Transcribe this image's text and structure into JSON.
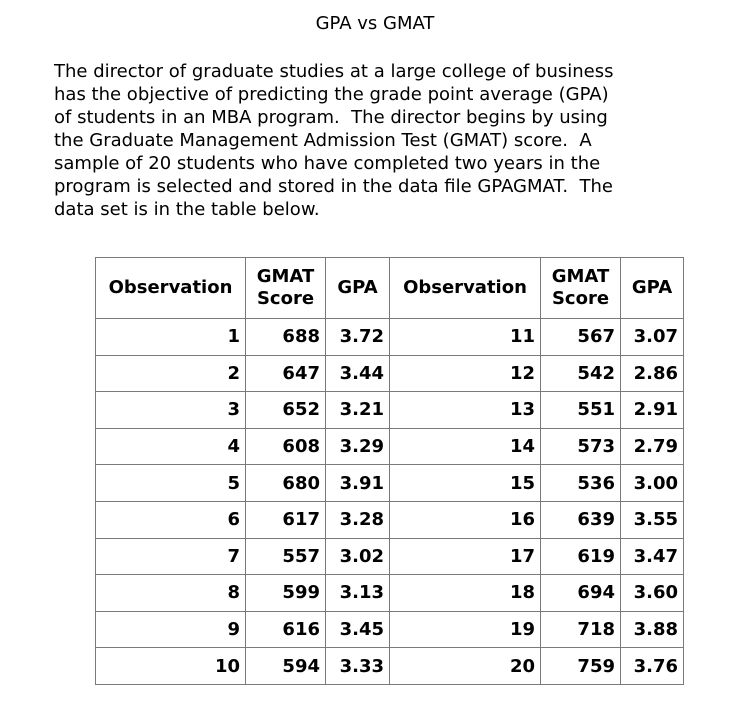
{
  "title": "GPA vs GMAT",
  "paragraph_lines": [
    "The director of graduate studies at a large college of business",
    "has the objective of predicting the grade point average (GPA)",
    "of students in an MBA program.  The director begins by using",
    "the Graduate Management Admission Test (GMAT) score.  A",
    "sample of 20 students who have completed two years in the",
    "program is selected and stored in the data file GPAGMAT.  The",
    "data set is in the table below."
  ],
  "table": {
    "headers": {
      "observation": "Observation",
      "gmat_line1": "GMAT",
      "gmat_line2": "Score",
      "gpa": "GPA"
    },
    "rows": [
      {
        "left": {
          "obs": "1",
          "gmat": "688",
          "gpa": "3.72"
        },
        "right": {
          "obs": "11",
          "gmat": "567",
          "gpa": "3.07"
        }
      },
      {
        "left": {
          "obs": "2",
          "gmat": "647",
          "gpa": "3.44"
        },
        "right": {
          "obs": "12",
          "gmat": "542",
          "gpa": "2.86"
        }
      },
      {
        "left": {
          "obs": "3",
          "gmat": "652",
          "gpa": "3.21"
        },
        "right": {
          "obs": "13",
          "gmat": "551",
          "gpa": "2.91"
        }
      },
      {
        "left": {
          "obs": "4",
          "gmat": "608",
          "gpa": "3.29"
        },
        "right": {
          "obs": "14",
          "gmat": "573",
          "gpa": "2.79"
        }
      },
      {
        "left": {
          "obs": "5",
          "gmat": "680",
          "gpa": "3.91"
        },
        "right": {
          "obs": "15",
          "gmat": "536",
          "gpa": "3.00"
        }
      },
      {
        "left": {
          "obs": "6",
          "gmat": "617",
          "gpa": "3.28"
        },
        "right": {
          "obs": "16",
          "gmat": "639",
          "gpa": "3.55"
        }
      },
      {
        "left": {
          "obs": "7",
          "gmat": "557",
          "gpa": "3.02"
        },
        "right": {
          "obs": "17",
          "gmat": "619",
          "gpa": "3.47"
        }
      },
      {
        "left": {
          "obs": "8",
          "gmat": "599",
          "gpa": "3.13"
        },
        "right": {
          "obs": "18",
          "gmat": "694",
          "gpa": "3.60"
        }
      },
      {
        "left": {
          "obs": "9",
          "gmat": "616",
          "gpa": "3.45"
        },
        "right": {
          "obs": "19",
          "gmat": "718",
          "gpa": "3.88"
        }
      },
      {
        "left": {
          "obs": "10",
          "gmat": "594",
          "gpa": "3.33"
        },
        "right": {
          "obs": "20",
          "gmat": "759",
          "gpa": "3.76"
        }
      }
    ]
  },
  "colors": {
    "border": "#7a7a7a",
    "text": "#000000",
    "background": "#ffffff"
  }
}
